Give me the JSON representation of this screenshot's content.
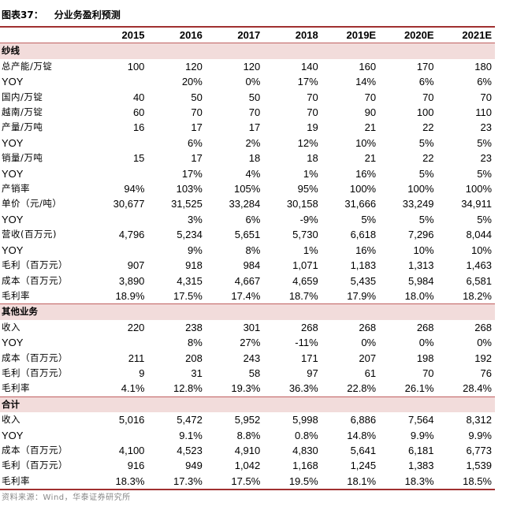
{
  "title": {
    "label": "图表37：",
    "text": "分业务盈利预测"
  },
  "columns": [
    "2015",
    "2016",
    "2017",
    "2018",
    "2019E",
    "2020E",
    "2021E"
  ],
  "sections": [
    {
      "name": "纱线",
      "rows": [
        {
          "label": "总产能/万锭",
          "values": [
            "100",
            "120",
            "120",
            "140",
            "160",
            "170",
            "180"
          ]
        },
        {
          "label": "YOY",
          "values": [
            "",
            "20%",
            "0%",
            "17%",
            "14%",
            "6%",
            "6%"
          ]
        },
        {
          "label": "国内/万锭",
          "values": [
            "40",
            "50",
            "50",
            "70",
            "70",
            "70",
            "70"
          ]
        },
        {
          "label": "越南/万锭",
          "values": [
            "60",
            "70",
            "70",
            "70",
            "90",
            "100",
            "110"
          ]
        },
        {
          "label": "产量/万吨",
          "values": [
            "16",
            "17",
            "17",
            "19",
            "21",
            "22",
            "23"
          ]
        },
        {
          "label": "YOY",
          "values": [
            "",
            "6%",
            "2%",
            "12%",
            "10%",
            "5%",
            "5%"
          ]
        },
        {
          "label": "销量/万吨",
          "values": [
            "15",
            "17",
            "18",
            "18",
            "21",
            "22",
            "23"
          ]
        },
        {
          "label": "YOY",
          "values": [
            "",
            "17%",
            "4%",
            "1%",
            "16%",
            "5%",
            "5%"
          ]
        },
        {
          "label": "产销率",
          "values": [
            "94%",
            "103%",
            "105%",
            "95%",
            "100%",
            "100%",
            "100%"
          ]
        },
        {
          "label": "单价（元/吨）",
          "values": [
            "30,677",
            "31,525",
            "33,284",
            "30,158",
            "31,666",
            "33,249",
            "34,911"
          ]
        },
        {
          "label": "YOY",
          "values": [
            "",
            "3%",
            "6%",
            "-9%",
            "5%",
            "5%",
            "5%"
          ]
        },
        {
          "label": "营收(百万元)",
          "values": [
            "4,796",
            "5,234",
            "5,651",
            "5,730",
            "6,618",
            "7,296",
            "8,044"
          ]
        },
        {
          "label": "YOY",
          "values": [
            "",
            "9%",
            "8%",
            "1%",
            "16%",
            "10%",
            "10%"
          ]
        },
        {
          "label": "毛利（百万元）",
          "values": [
            "907",
            "918",
            "984",
            "1,071",
            "1,183",
            "1,313",
            "1,463"
          ]
        },
        {
          "label": "成本（百万元）",
          "values": [
            "3,890",
            "4,315",
            "4,667",
            "4,659",
            "5,435",
            "5,984",
            "6,581"
          ]
        },
        {
          "label": "毛利率",
          "values": [
            "18.9%",
            "17.5%",
            "17.4%",
            "18.7%",
            "17.9%",
            "18.0%",
            "18.2%"
          ]
        }
      ]
    },
    {
      "name": "其他业务",
      "rows": [
        {
          "label": "收入",
          "values": [
            "220",
            "238",
            "301",
            "268",
            "268",
            "268",
            "268"
          ]
        },
        {
          "label": "YOY",
          "values": [
            "",
            "8%",
            "27%",
            "-11%",
            "0%",
            "0%",
            "0%"
          ]
        },
        {
          "label": "成本（百万元）",
          "values": [
            "211",
            "208",
            "243",
            "171",
            "207",
            "198",
            "192"
          ]
        },
        {
          "label": "毛利（百万元）",
          "values": [
            "9",
            "31",
            "58",
            "97",
            "61",
            "70",
            "76"
          ]
        },
        {
          "label": "毛利率",
          "values": [
            "4.1%",
            "12.8%",
            "19.3%",
            "36.3%",
            "22.8%",
            "26.1%",
            "28.4%"
          ]
        }
      ]
    },
    {
      "name": "合计",
      "rows": [
        {
          "label": "收入",
          "values": [
            "5,016",
            "5,472",
            "5,952",
            "5,998",
            "6,886",
            "7,564",
            "8,312"
          ]
        },
        {
          "label": "YOY",
          "values": [
            "",
            "9.1%",
            "8.8%",
            "0.8%",
            "14.8%",
            "9.9%",
            "9.9%"
          ]
        },
        {
          "label": "成本（百万元）",
          "values": [
            "4,100",
            "4,523",
            "4,910",
            "4,830",
            "5,641",
            "6,181",
            "6,773"
          ]
        },
        {
          "label": "毛利（百万元）",
          "values": [
            "916",
            "949",
            "1,042",
            "1,168",
            "1,245",
            "1,383",
            "1,539"
          ]
        },
        {
          "label": "毛利率",
          "values": [
            "18.3%",
            "17.3%",
            "17.5%",
            "19.5%",
            "18.1%",
            "18.3%",
            "18.5%"
          ]
        }
      ]
    }
  ],
  "source": "资料来源：Wind，华泰证券研究所"
}
